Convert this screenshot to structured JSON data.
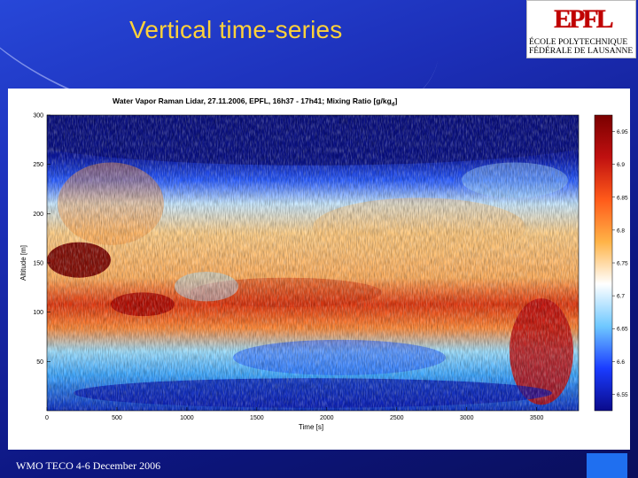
{
  "slide": {
    "title": "Vertical time-series",
    "footer": "WMO TECO  4-6 December 2006"
  },
  "logo": {
    "mark": "EPFL",
    "line1": "ÉCOLE  POLYTECHNIQUE",
    "line2": "FÉDÉRALE DE LAUSANNE"
  },
  "chart_data": {
    "type": "heatmap",
    "title": "Water Vapor Raman Lidar, 27.11.2006, EPFL, 16h37 - 17h41; Mixing Ratio [g/kg",
    "title_subscript": "d",
    "title_suffix": "]",
    "xlabel": "Time [s]",
    "ylabel": "Altitude [m]",
    "xlim": [
      0,
      3800
    ],
    "ylim": [
      0,
      300
    ],
    "xticks": [
      "0",
      "500",
      "1000",
      "1500",
      "2000",
      "2500",
      "3000",
      "3500"
    ],
    "yticks": [
      "50",
      "100",
      "150",
      "200",
      "250",
      "300"
    ],
    "colorbar": {
      "colors": [
        "#0a0a8a",
        "#1a3cff",
        "#6fc8ff",
        "#ffffff",
        "#ffb347",
        "#ff5a1a",
        "#c01010",
        "#7a0000"
      ],
      "ticks": [
        "6.55",
        "6.6",
        "6.65",
        "6.7",
        "6.75",
        "6.8",
        "6.85",
        "6.9",
        "6.95"
      ]
    }
  }
}
